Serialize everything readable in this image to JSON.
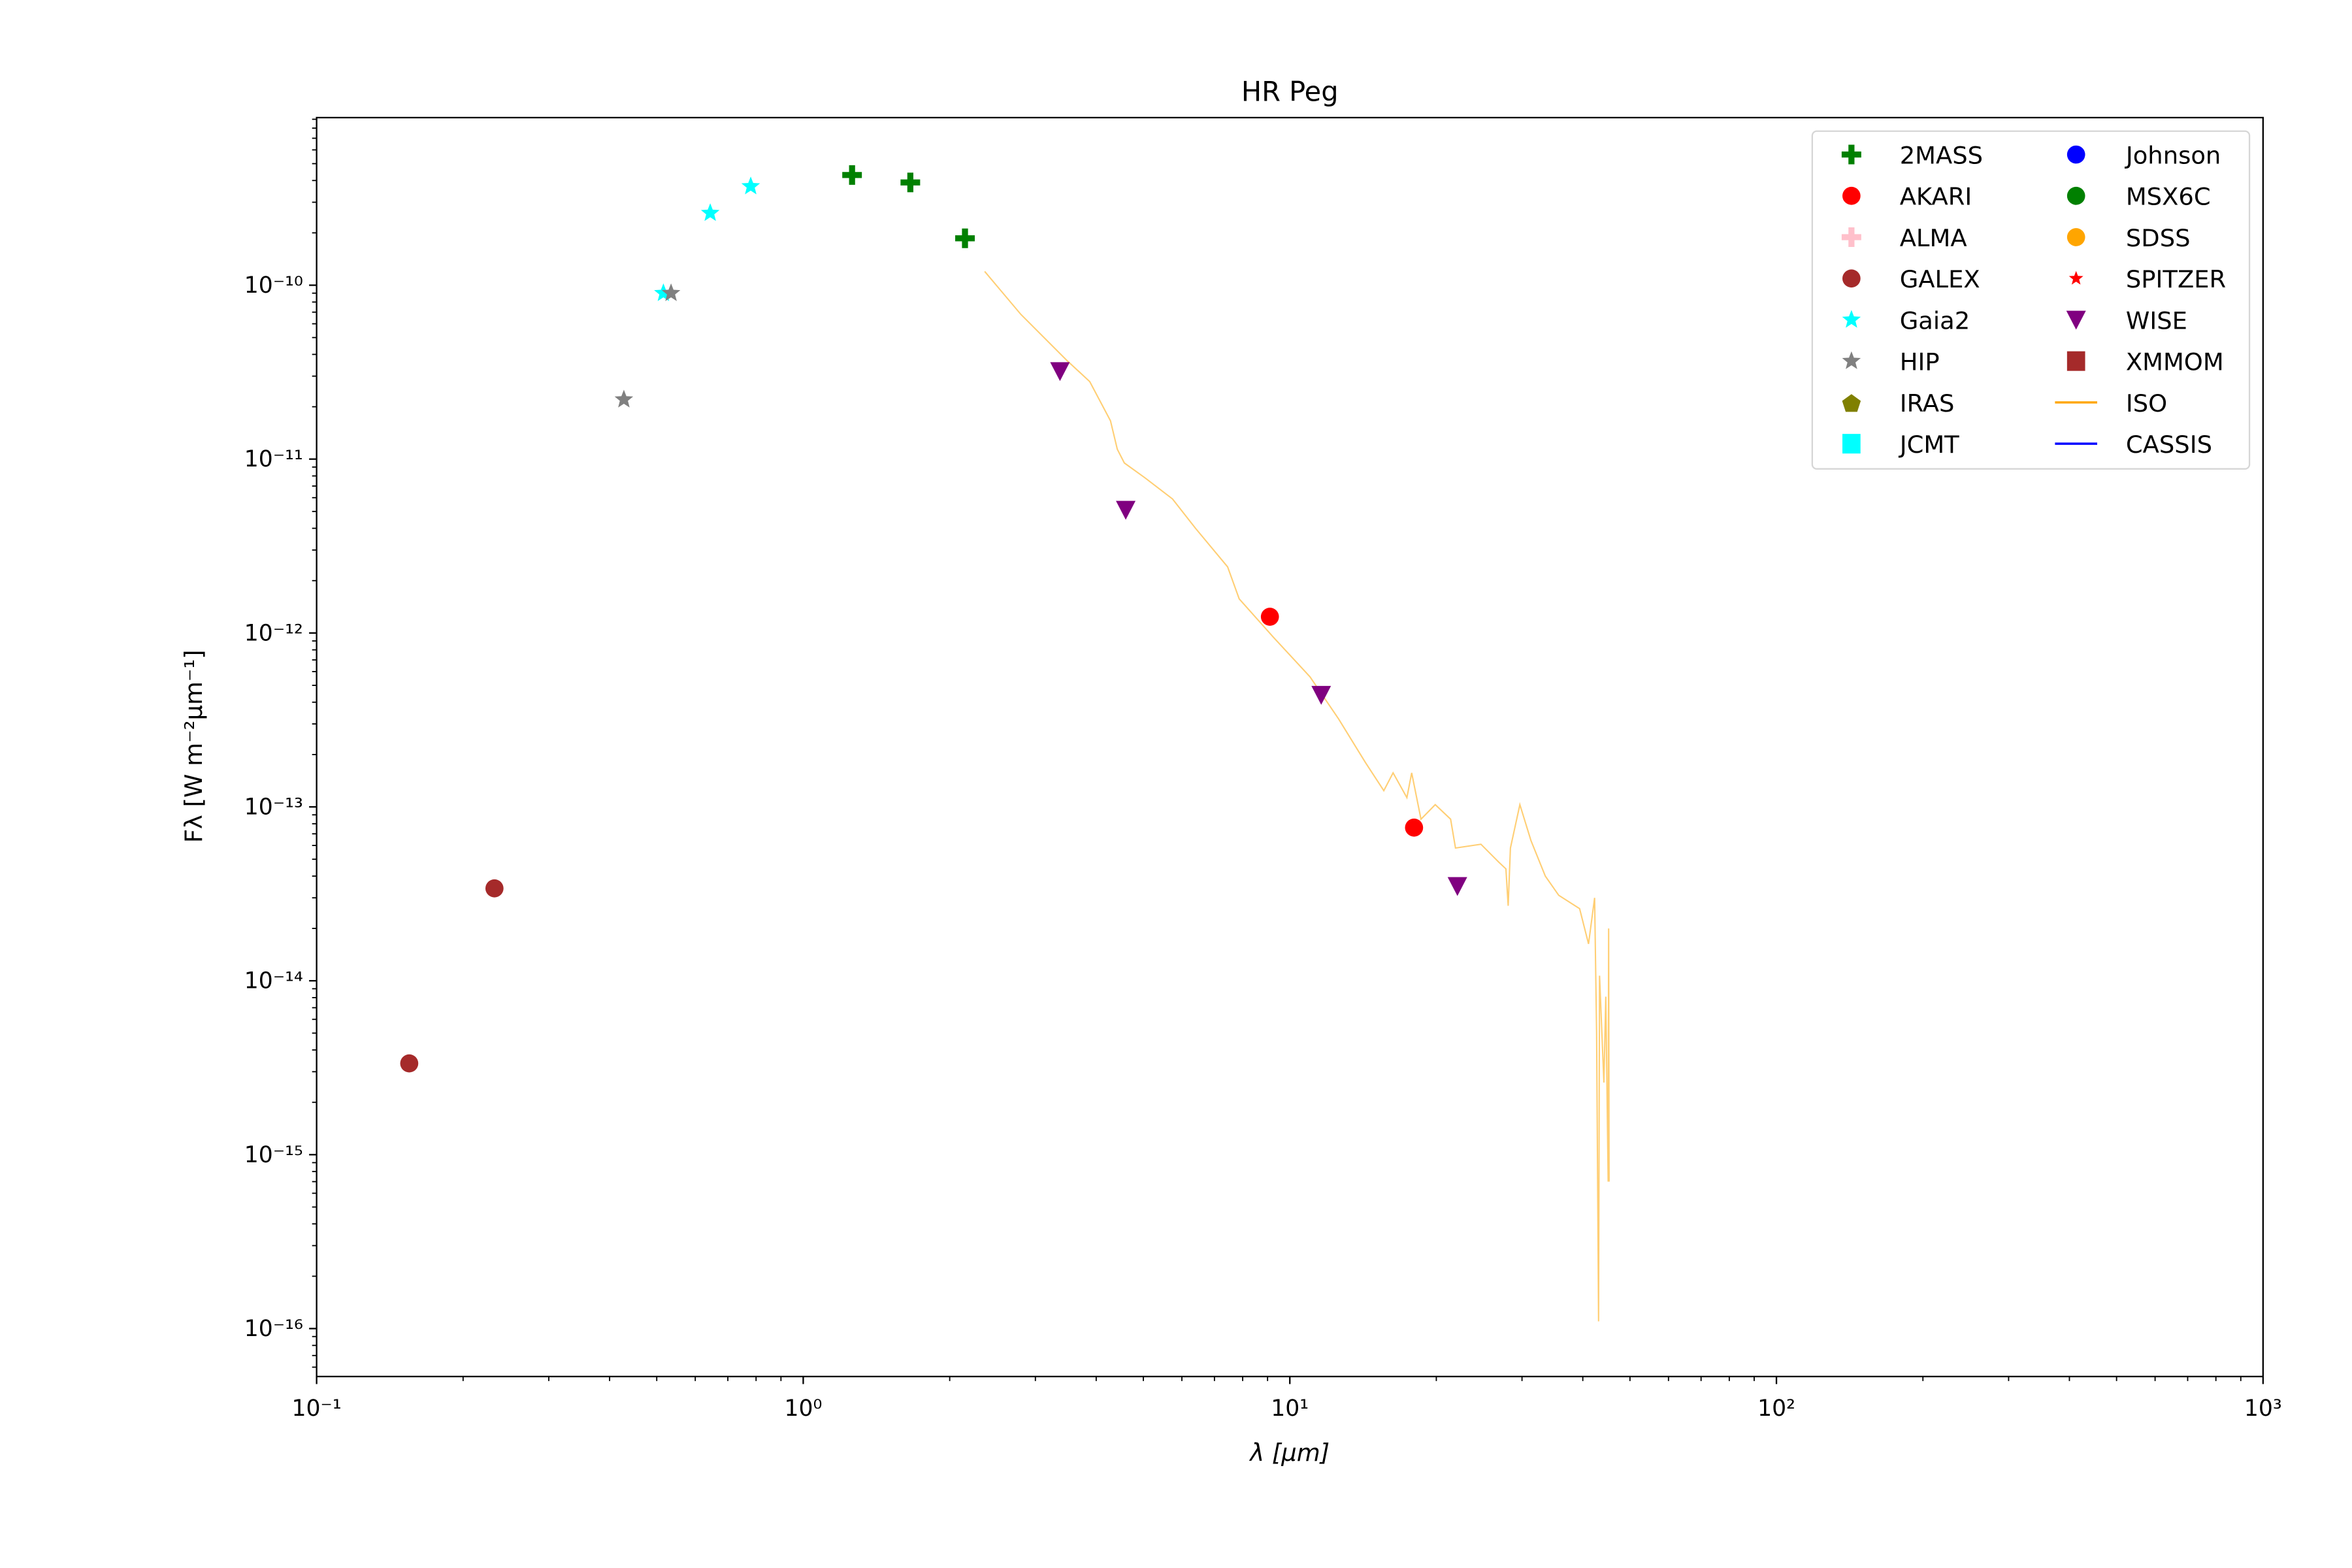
{
  "chart_data": {
    "type": "scatter",
    "title": "HR Peg",
    "xlabel": "λ [μm]",
    "ylabel": "Fλ [W m⁻²μm⁻¹]",
    "xscale": "log",
    "yscale": "log",
    "xlim": [
      0.1,
      1000
    ],
    "ylim": [
      5.3e-17,
      9.2e-10
    ],
    "grid": false,
    "legend_placement": "upper-right",
    "legend_columns": 2,
    "x_ticks": [
      {
        "value": 0.1,
        "label": "10⁻¹"
      },
      {
        "value": 1,
        "label": "10⁰"
      },
      {
        "value": 10,
        "label": "10¹"
      },
      {
        "value": 100,
        "label": "10²"
      },
      {
        "value": 1000,
        "label": "10³"
      }
    ],
    "y_ticks": [
      {
        "value": 1e-16,
        "label": "10⁻¹⁶"
      },
      {
        "value": 1e-15,
        "label": "10⁻¹⁵"
      },
      {
        "value": 1e-14,
        "label": "10⁻¹⁴"
      },
      {
        "value": 1e-13,
        "label": "10⁻¹³"
      },
      {
        "value": 1e-12,
        "label": "10⁻¹²"
      },
      {
        "value": 1e-11,
        "label": "10⁻¹¹"
      },
      {
        "value": 1e-10,
        "label": "10⁻¹⁰"
      }
    ],
    "series": [
      {
        "name": "2MASS",
        "marker": "plus",
        "color": "#008000",
        "x": [
          1.26,
          1.66,
          2.15
        ],
        "y": [
          4.3e-10,
          3.9e-10,
          1.86e-10
        ]
      },
      {
        "name": "AKARI",
        "marker": "circle",
        "color": "#ff0000",
        "x": [
          9.1,
          18.0
        ],
        "y": [
          1.24e-12,
          7.6e-14
        ]
      },
      {
        "name": "ALMA",
        "marker": "plus",
        "color": "#ffc0cb",
        "x": [],
        "y": []
      },
      {
        "name": "GALEX",
        "marker": "circle",
        "color": "#a52a2a",
        "x": [
          0.155,
          0.232
        ],
        "y": [
          3.35e-15,
          3.4e-14
        ]
      },
      {
        "name": "Gaia2",
        "marker": "star",
        "color": "#00ffff",
        "x": [
          0.516,
          0.644,
          0.78
        ],
        "y": [
          9e-11,
          2.6e-10,
          3.7e-10
        ]
      },
      {
        "name": "HIP",
        "marker": "star",
        "color": "#808080",
        "x": [
          0.428,
          0.535
        ],
        "y": [
          2.2e-11,
          9e-11
        ]
      },
      {
        "name": "IRAS",
        "marker": "pentagon",
        "color": "#808000",
        "x": [],
        "y": []
      },
      {
        "name": "JCMT",
        "marker": "square",
        "color": "#00ffff",
        "x": [],
        "y": []
      },
      {
        "name": "Johnson",
        "marker": "circle",
        "color": "#0000ff",
        "x": [],
        "y": []
      },
      {
        "name": "MSX6C",
        "marker": "circle",
        "color": "#008000",
        "x": [],
        "y": []
      },
      {
        "name": "SDSS",
        "marker": "circle",
        "color": "#ffa500",
        "x": [],
        "y": []
      },
      {
        "name": "SPITZER",
        "marker": "smallstar",
        "color": "#ff0000",
        "x": [],
        "y": []
      },
      {
        "name": "WISE",
        "marker": "triangle-down",
        "color": "#800080",
        "x": [
          3.37,
          4.6,
          11.6,
          22.1
        ],
        "y": [
          3.2e-11,
          5.1e-12,
          4.4e-13,
          3.5e-14
        ]
      },
      {
        "name": "XMMOM",
        "marker": "square",
        "color": "#a52a2a",
        "x": [],
        "y": []
      },
      {
        "name": "ISO",
        "marker": "line",
        "color": "#ffa500",
        "x": [
          2.36,
          2.8,
          3.48,
          3.88,
          4.28,
          4.42,
          4.57,
          5.04,
          5.74,
          6.4,
          7.45,
          7.87,
          9.27,
          11.0,
          12.6,
          14.3,
          15.6,
          16.3,
          17.4,
          17.8,
          18.6,
          19.9,
          21.4,
          21.9,
          24.7,
          26.9,
          27.8,
          28.1,
          28.4,
          29.7,
          31.3,
          33.5,
          35.7,
          39.4,
          41.1,
          42.3,
          42.7,
          43.1,
          43.3,
          44.2,
          44.6,
          45.1,
          45.2,
          45.3
        ],
        "y": [
          1.2e-10,
          6.8e-11,
          3.7e-11,
          2.79e-11,
          1.66e-11,
          1.14e-11,
          9.5e-12,
          7.8e-12,
          5.9e-12,
          4e-12,
          2.4e-12,
          1.57e-12,
          9.4e-13,
          5.6e-13,
          3.2e-13,
          1.8e-13,
          1.24e-13,
          1.57e-13,
          1.13e-13,
          1.57e-13,
          8.5e-14,
          1.03e-13,
          8.5e-14,
          5.8e-14,
          6.1e-14,
          4.8e-14,
          4.4e-14,
          2.7e-14,
          5.8e-14,
          1.03e-13,
          6.4e-14,
          4e-14,
          3.1e-14,
          2.6e-14,
          1.63e-14,
          3e-14,
          5e-15,
          1.1e-16,
          1.07e-14,
          2.6e-15,
          8.1e-15,
          7e-16,
          2e-14,
          7e-16
        ]
      },
      {
        "name": "CASSIS",
        "marker": "line",
        "color": "#0000ff",
        "x": [],
        "y": []
      }
    ]
  }
}
